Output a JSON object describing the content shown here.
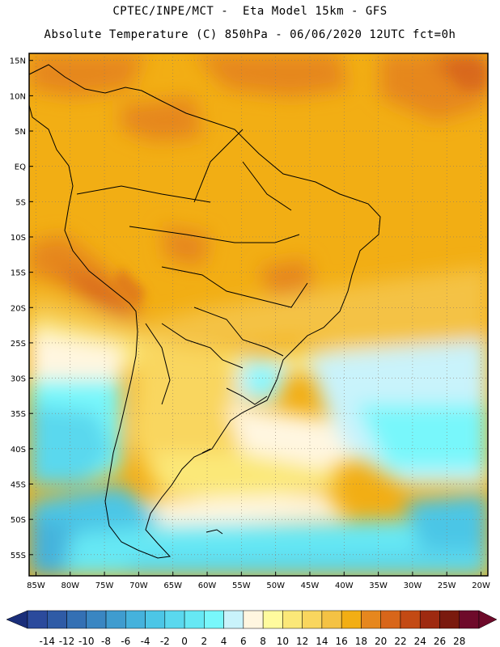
{
  "header": {
    "line1": "CPTEC/INPE/MCT -  Eta Model 15km - GFS",
    "line2": "Absolute Temperature (C) 850hPa - 06/06/2020 12UTC fct=0h"
  },
  "axes": {
    "lat_labels": [
      "15N",
      "10N",
      "5N",
      "EQ",
      "5S",
      "10S",
      "15S",
      "20S",
      "25S",
      "30S",
      "35S",
      "40S",
      "45S",
      "50S",
      "55S"
    ],
    "lat_values": [
      15,
      10,
      5,
      0,
      -5,
      -10,
      -15,
      -20,
      -25,
      -30,
      -35,
      -40,
      -45,
      -50,
      -55
    ],
    "lon_labels": [
      "85W",
      "80W",
      "75W",
      "70W",
      "65W",
      "60W",
      "55W",
      "50W",
      "45W",
      "40W",
      "35W",
      "30W",
      "25W",
      "20W"
    ],
    "lon_values": [
      -85,
      -80,
      -75,
      -70,
      -65,
      -60,
      -55,
      -50,
      -45,
      -40,
      -35,
      -30,
      -25,
      -20
    ],
    "lon_range": [
      -86,
      -19
    ],
    "lat_range": [
      -58,
      16
    ]
  },
  "colorbar": {
    "labels": [
      "-14",
      "-12",
      "-10",
      "-8",
      "-6",
      "-4",
      "-2",
      "0",
      "2",
      "4",
      "6",
      "8",
      "10",
      "12",
      "14",
      "16",
      "18",
      "20",
      "22",
      "24",
      "26",
      "28"
    ],
    "colors": [
      "#2b4a9c",
      "#2f5ba6",
      "#3470b4",
      "#3a86c2",
      "#3f9ccf",
      "#45b2dc",
      "#4cc6e6",
      "#5ad8ee",
      "#66e8f4",
      "#78f7fb",
      "#c9f3fb",
      "#fff6e0",
      "#fffb9e",
      "#fbe878",
      "#f9d65e",
      "#f4c244",
      "#f2ae14",
      "#e6871e",
      "#d8661a",
      "#c34a14",
      "#9e2a10",
      "#7a1a0e",
      "#6e0a2a"
    ],
    "low_arrow_color": "#1a2e7a",
    "high_arrow_color": "#6e0a2a"
  }
}
